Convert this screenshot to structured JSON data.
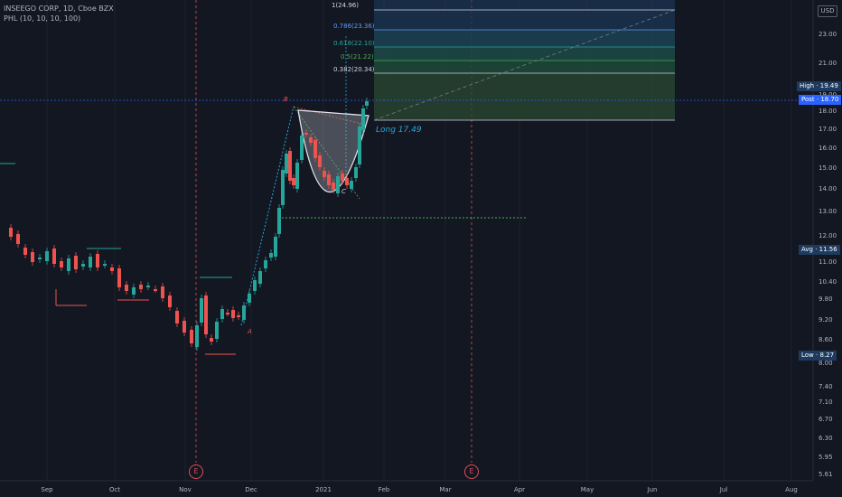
{
  "header": {
    "title": "INSEEGO CORP, 1D, Cboe BZX",
    "indicator": "PHL (10, 10, 10, 100)"
  },
  "currency": "USD",
  "y_axis_ticks": [
    "23.00",
    "21.00",
    "19.00",
    "18.00",
    "17.00",
    "16.00",
    "15.00",
    "14.00",
    "13.00",
    "12.00",
    "11.00",
    "10.40",
    "9.80",
    "9.20",
    "8.60",
    "8.00",
    "7.40",
    "7.10",
    "6.70",
    "6.30",
    "5.95",
    "5.61"
  ],
  "x_axis_ticks": [
    "Sep",
    "Oct",
    "Nov",
    "Dec",
    "2021",
    "Feb",
    "Mar",
    "Apr",
    "May",
    "Jun",
    "Jul",
    "Aug"
  ],
  "price_labels": {
    "high": "High",
    "high_value": "19.49",
    "post": "Post",
    "post_value": "18.70",
    "avg": "Avg",
    "avg_value": "11.56",
    "low": "Low",
    "low_value": "8.27"
  },
  "fib_levels": [
    {
      "label": "1(24.96)",
      "color": "#b2b5be"
    },
    {
      "label": "0.786(23.36)",
      "color": "#5b9cf6"
    },
    {
      "label": "0.618(22.10)",
      "color": "#26a69a"
    },
    {
      "label": "0.5(21.22)",
      "color": "#4caf50"
    },
    {
      "label": "0.382(20.34)",
      "color": "#b2b5be"
    }
  ],
  "trade_label": "Long 17.49",
  "pattern_points": {
    "a": "A",
    "b": "B",
    "c": "C"
  },
  "earnings_marker": "E",
  "colors": {
    "up": "#26a69a",
    "down": "#ef5350",
    "background": "#131722"
  }
}
